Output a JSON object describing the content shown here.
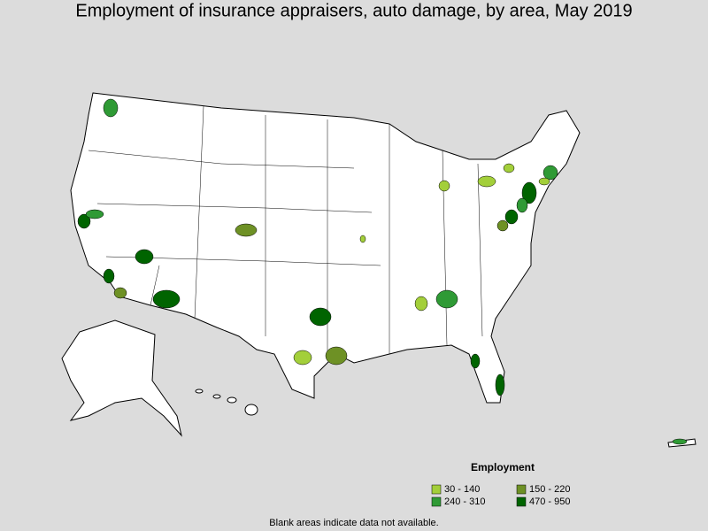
{
  "title": "Employment of insurance appraisers, auto damage, by area, May 2019",
  "legend": {
    "title": "Employment",
    "entries": [
      {
        "label": "30 - 140",
        "color": "#a3cf3a"
      },
      {
        "label": "150 - 220",
        "color": "#6e9125"
      },
      {
        "label": "240 - 310",
        "color": "#2f9a35"
      },
      {
        "label": "470 - 950",
        "color": "#006400"
      }
    ]
  },
  "footnote": "Blank areas indicate data not available."
}
